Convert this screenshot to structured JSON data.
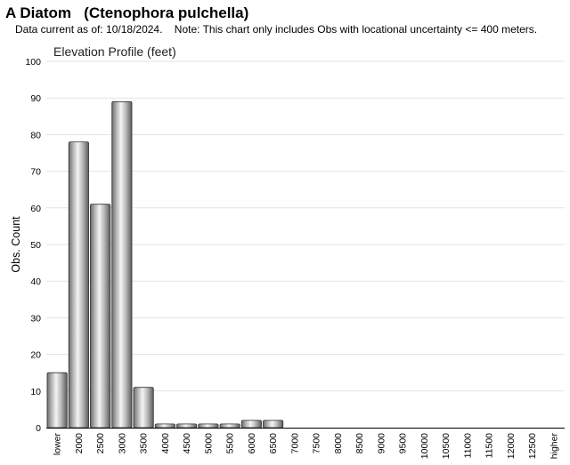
{
  "header": {
    "title": "A Diatom   (Ctenophora pulchella)",
    "subtitle": "Data current as of: 10/18/2024.    Note: This chart only includes Obs with locational uncertainty <= 400 meters."
  },
  "chart_data": {
    "type": "bar",
    "title": "Elevation Profile (feet)",
    "xlabel": "",
    "ylabel": "Obs. Count",
    "ylim": [
      0,
      100
    ],
    "yticks": [
      0,
      10,
      20,
      30,
      40,
      50,
      60,
      70,
      80,
      90,
      100
    ],
    "grid": true,
    "categories": [
      "lower",
      "2000",
      "2500",
      "3000",
      "3500",
      "4000",
      "4500",
      "5000",
      "5500",
      "6000",
      "6500",
      "7000",
      "7500",
      "8000",
      "8500",
      "9000",
      "9500",
      "10000",
      "10500",
      "11000",
      "11500",
      "12000",
      "12500",
      "higher"
    ],
    "values": [
      15,
      78,
      61,
      89,
      11,
      1,
      1,
      1,
      1,
      2,
      2,
      0,
      0,
      0,
      0,
      0,
      0,
      0,
      0,
      0,
      0,
      0,
      0,
      0
    ],
    "bar_color": "#b0b0b0"
  }
}
